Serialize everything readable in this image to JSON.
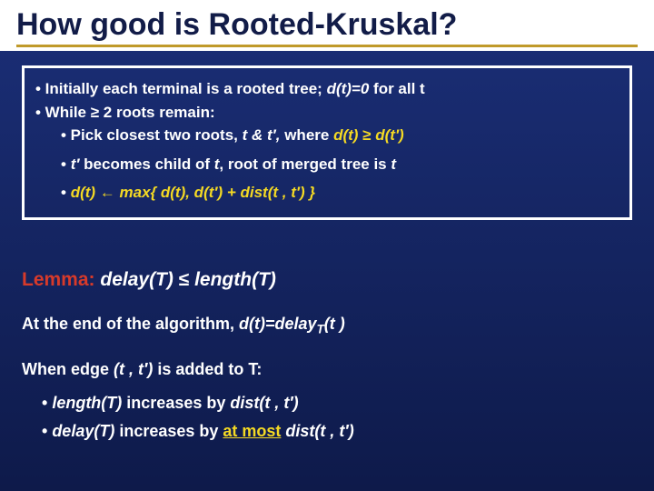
{
  "colors": {
    "slide_bg_top": "#1b2f78",
    "slide_bg_bottom": "#0e1a4a",
    "title_bar_bg": "#ffffff",
    "title_text": "#121c48",
    "title_underline": "#c09a2a",
    "box_border": "#ffffff",
    "box_bg": "transparent",
    "body_text": "#ffffff",
    "accent_yellow": "#f4d924",
    "lemma_red": "#d73a2a"
  },
  "title": "How good is Rooted-Kruskal?",
  "algorithm": {
    "line1_pre": "• Initially each terminal is a rooted tree;  ",
    "line1_em": "d(t)=0",
    "line1_post": " for all t",
    "line2": "• While ",
    "line2_sym": "≥",
    "line2_post": " 2 roots remain:",
    "line3_pre": "• Pick closest two roots, ",
    "line3_em1": "t & t′,",
    "line3_mid": " where ",
    "line3_em2": "d(t) ",
    "line3_sym": "≥",
    "line3_em3": " d(t′)",
    "line4_pre": "• ",
    "line4_em1": "t′",
    "line4_mid1": " becomes child of ",
    "line4_em2": "t",
    "line4_mid2": ", root of merged tree is ",
    "line4_em3": "t",
    "line5_pre": "• ",
    "line5_em1": "d(t) ",
    "line5_arrow": "←",
    "line5_em2": " max{ d(t), d(t′) + dist(t , t′) }"
  },
  "lemma": {
    "label": "Lemma:",
    "stmt_pre": "  delay(T) ",
    "stmt_sym": "≤",
    "stmt_post": " length(T)"
  },
  "para1_pre": "At the end of the algorithm, ",
  "para1_em": "d(t)=delay",
  "para1_sub": "T",
  "para1_post": "(t )",
  "para2_pre": "When edge ",
  "para2_em": "(t , t′)",
  "para2_post": " is added to T:",
  "bullet1_pre": "• ",
  "bullet1_em1": "length(T) ",
  "bullet1_mid": " increases by ",
  "bullet1_em2": "dist(t , t′)",
  "bullet2_pre": "• ",
  "bullet2_em1": "delay(T)",
  "bullet2_mid": " increases by ",
  "bullet2_accent": "at most",
  "bullet2_em2": " dist(t , t′)"
}
